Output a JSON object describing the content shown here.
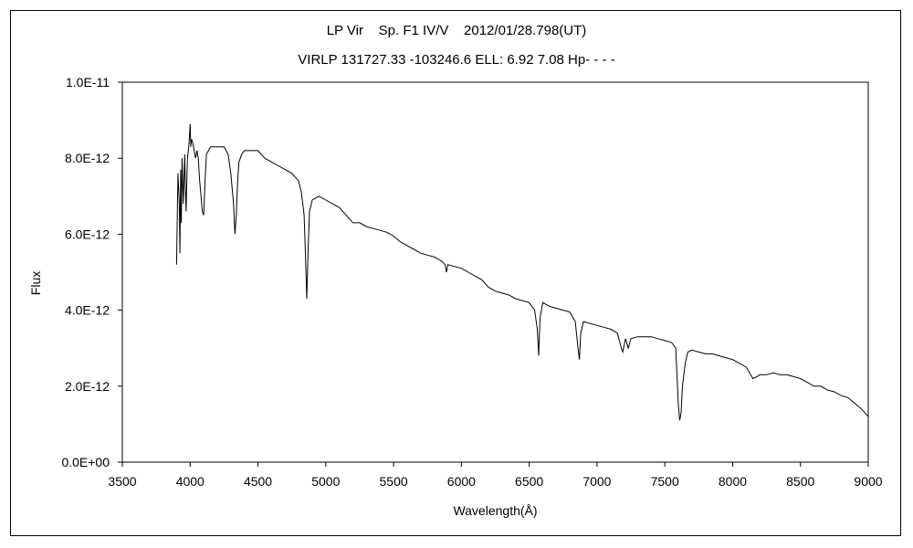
{
  "chart_data": {
    "type": "line",
    "title": "LP Vir    Sp. F1 IV/V    2012/01/28.798(UT)",
    "subtitle": "VIRLP 131727.33 -103246.6 ELL: 6.92 7.08 Hp- - - -",
    "xlabel": "Wavelength(Å)",
    "ylabel": "Flux",
    "xlim": [
      3500,
      9000
    ],
    "ylim": [
      0,
      1e-11
    ],
    "x_ticks": [
      "3500",
      "4000",
      "4500",
      "5000",
      "5500",
      "6000",
      "6500",
      "7000",
      "7500",
      "8000",
      "8500",
      "9000"
    ],
    "y_ticks": [
      "0.0E+00",
      "2.0E-12",
      "4.0E-12",
      "6.0E-12",
      "8.0E-12",
      "1.0E-11"
    ],
    "grid": false,
    "legend": "none",
    "line_color": "#000000",
    "series": [
      {
        "x": [
          3900,
          3910,
          3920,
          3925,
          3930,
          3935,
          3940,
          3950,
          3960,
          3965,
          3970,
          3980,
          3990,
          4000,
          4005,
          4010,
          4020,
          4030,
          4040,
          4050,
          4060,
          4070,
          4080,
          4090,
          4100,
          4110,
          4120,
          4150,
          4200,
          4250,
          4280,
          4300,
          4320,
          4330,
          4340,
          4350,
          4360,
          4380,
          4400,
          4450,
          4500,
          4550,
          4600,
          4650,
          4700,
          4750,
          4800,
          4820,
          4840,
          4850,
          4860,
          4870,
          4880,
          4900,
          4950,
          5000,
          5050,
          5100,
          5150,
          5200,
          5250,
          5300,
          5350,
          5400,
          5450,
          5500,
          5550,
          5600,
          5650,
          5700,
          5750,
          5800,
          5850,
          5880,
          5890,
          5900,
          5950,
          6000,
          6050,
          6100,
          6150,
          6200,
          6250,
          6300,
          6350,
          6400,
          6450,
          6500,
          6540,
          6560,
          6570,
          6580,
          6600,
          6650,
          6700,
          6750,
          6800,
          6840,
          6860,
          6870,
          6880,
          6900,
          6950,
          7000,
          7050,
          7100,
          7150,
          7180,
          7190,
          7210,
          7230,
          7250,
          7300,
          7350,
          7400,
          7450,
          7500,
          7550,
          7580,
          7600,
          7610,
          7620,
          7630,
          7650,
          7670,
          7700,
          7750,
          7800,
          7850,
          7900,
          7950,
          8000,
          8050,
          8100,
          8150,
          8180,
          8200,
          8250,
          8300,
          8350,
          8400,
          8450,
          8500,
          8550,
          8600,
          8650,
          8700,
          8750,
          8800,
          8850,
          8900,
          8950,
          9000
        ],
        "y": [
          5.2e-12,
          7.6e-12,
          6.8e-12,
          5.5e-12,
          7.7e-12,
          6.3e-12,
          8e-12,
          6.8e-12,
          8.1e-12,
          7.2e-12,
          6.6e-12,
          8e-12,
          8.3e-12,
          8.9e-12,
          8.3e-12,
          8.5e-12,
          8.4e-12,
          8.2e-12,
          8e-12,
          8.2e-12,
          8e-12,
          7.4e-12,
          7e-12,
          6.6e-12,
          6.5e-12,
          7.4e-12,
          8.1e-12,
          8.3e-12,
          8.3e-12,
          8.3e-12,
          8.1e-12,
          7.6e-12,
          6.8e-12,
          6e-12,
          6.5e-12,
          7.4e-12,
          7.9e-12,
          8.1e-12,
          8.2e-12,
          8.2e-12,
          8.2e-12,
          8e-12,
          7.9e-12,
          7.8e-12,
          7.7e-12,
          7.6e-12,
          7.4e-12,
          7.1e-12,
          6.5e-12,
          5.5e-12,
          4.3e-12,
          5.6e-12,
          6.6e-12,
          6.9e-12,
          7e-12,
          6.9e-12,
          6.8e-12,
          6.7e-12,
          6.5e-12,
          6.3e-12,
          6.3e-12,
          6.2e-12,
          6.15e-12,
          6.1e-12,
          6.05e-12,
          5.95e-12,
          5.8e-12,
          5.7e-12,
          5.6e-12,
          5.5e-12,
          5.45e-12,
          5.4e-12,
          5.3e-12,
          5.2e-12,
          5e-12,
          5.2e-12,
          5.15e-12,
          5.1e-12,
          5e-12,
          4.9e-12,
          4.8e-12,
          4.6e-12,
          4.5e-12,
          4.45e-12,
          4.4e-12,
          4.3e-12,
          4.25e-12,
          4.2e-12,
          4e-12,
          3.5e-12,
          2.8e-12,
          3.8e-12,
          4.2e-12,
          4.1e-12,
          4.05e-12,
          4e-12,
          3.95e-12,
          3.7e-12,
          3e-12,
          2.7e-12,
          3.4e-12,
          3.7e-12,
          3.65e-12,
          3.6e-12,
          3.55e-12,
          3.5e-12,
          3.4e-12,
          3e-12,
          2.9e-12,
          3.25e-12,
          3e-12,
          3.25e-12,
          3.3e-12,
          3.3e-12,
          3.3e-12,
          3.25e-12,
          3.2e-12,
          3.15e-12,
          3e-12,
          1.5e-12,
          1.1e-12,
          1.3e-12,
          2e-12,
          2.6e-12,
          2.9e-12,
          2.95e-12,
          2.9e-12,
          2.85e-12,
          2.85e-12,
          2.8e-12,
          2.75e-12,
          2.7e-12,
          2.6e-12,
          2.5e-12,
          2.2e-12,
          2.25e-12,
          2.3e-12,
          2.3e-12,
          2.35e-12,
          2.3e-12,
          2.3e-12,
          2.25e-12,
          2.2e-12,
          2.1e-12,
          2e-12,
          2e-12,
          1.9e-12,
          1.85e-12,
          1.75e-12,
          1.7e-12,
          1.55e-12,
          1.4e-12,
          1.2e-12
        ]
      }
    ]
  }
}
